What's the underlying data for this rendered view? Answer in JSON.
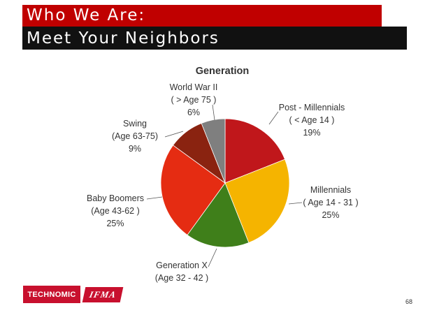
{
  "header": {
    "line1": "Who We Are:",
    "line2": "Meet Your Neighbors"
  },
  "logos": {
    "technomic": "TECHNOMIC",
    "ifma": "IFMA"
  },
  "page_number": "68",
  "colors": {
    "header_red": "#c00000",
    "header_black": "#111111"
  },
  "chart_data": {
    "type": "pie",
    "title": "Generation",
    "slices": [
      {
        "name": "Post - Millennials",
        "range": "( < Age 14 )",
        "value": 19,
        "label": "19%",
        "color": "#c0171b"
      },
      {
        "name": "Millennials",
        "range": "( Age 14 - 31 )",
        "value": 25,
        "label": "25%",
        "color": "#f5b400"
      },
      {
        "name": "Generation X",
        "range": "(Age 32 - 42 )",
        "value": 16,
        "label": "16%",
        "color": "#3f7f1a"
      },
      {
        "name": "Baby Boomers",
        "range": "(Age 43-62 )",
        "value": 25,
        "label": "25%",
        "color": "#e52c12"
      },
      {
        "name": "Swing",
        "range": "(Age 63-75)",
        "value": 9,
        "label": "9%",
        "color": "#8a2310"
      },
      {
        "name": "World War II",
        "range": "( > Age 75 )",
        "value": 6,
        "label": "6%",
        "color": "#7f7f7f"
      }
    ]
  }
}
